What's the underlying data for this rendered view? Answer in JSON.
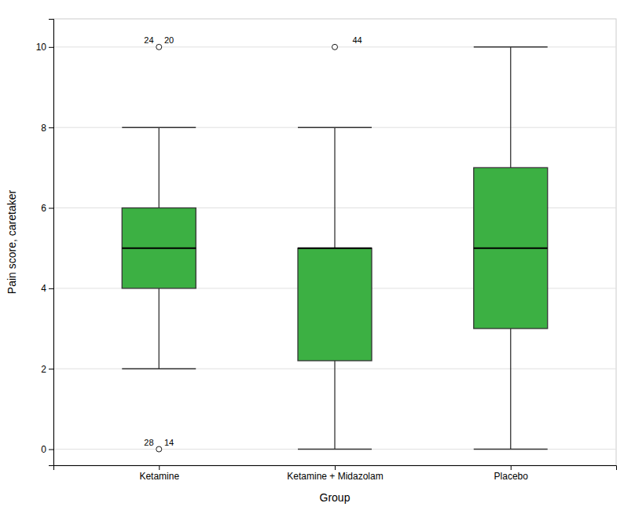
{
  "chart_data": {
    "type": "box",
    "xlabel": "Group",
    "ylabel": "Pain score, caretaker",
    "categories": [
      "Ketamine",
      "Ketamine + Midazolam",
      "Placebo"
    ],
    "boxes": [
      {
        "q1": 4.0,
        "median": 5.0,
        "q3": 6.0,
        "whislo": 2.0,
        "whishi": 8.0,
        "outliers": [
          {
            "value": 10.0,
            "labels": [
              "24",
              "20"
            ]
          },
          {
            "value": 0.0,
            "labels": [
              "28",
              "14"
            ]
          }
        ]
      },
      {
        "q1": 2.2,
        "median": 5.0,
        "q3": 5.0,
        "whislo": 0.0,
        "whishi": 8.0,
        "outliers": [
          {
            "value": 10.0,
            "labels": [
              "44"
            ]
          }
        ]
      },
      {
        "q1": 3.0,
        "median": 5.0,
        "q3": 7.0,
        "whislo": 0.0,
        "whishi": 10.0,
        "outliers": []
      }
    ],
    "color": "#3CB043",
    "ylim": [
      -0.4,
      10.7
    ],
    "yticks": [
      0,
      2,
      4,
      6,
      8,
      10
    ],
    "grid": true
  }
}
